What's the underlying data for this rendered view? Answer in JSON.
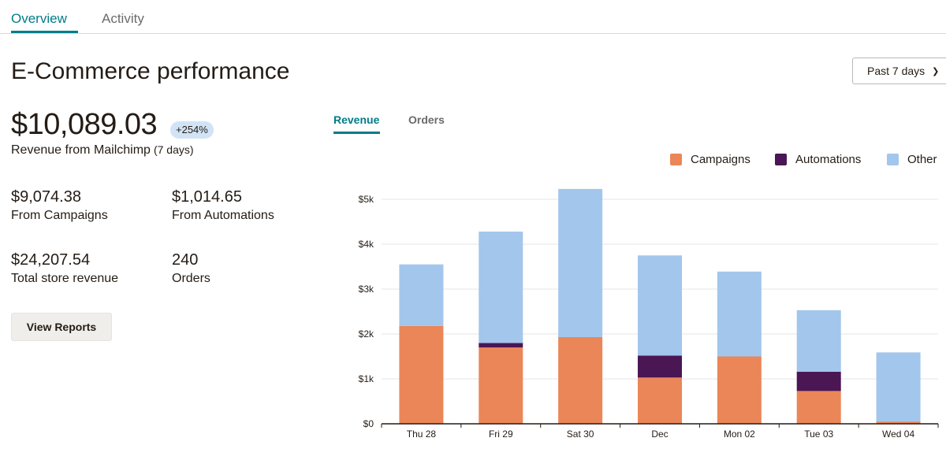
{
  "tabs": [
    {
      "label": "Overview",
      "active": true
    },
    {
      "label": "Activity",
      "active": false
    }
  ],
  "page_title": "E-Commerce performance",
  "date_range": {
    "selected": "Past 7 days"
  },
  "summary": {
    "revenue": "$10,089.03",
    "change_badge": "+254%",
    "revenue_label": "Revenue from Mailchimp",
    "revenue_period": "(7 days)"
  },
  "stats": [
    {
      "value": "$9,074.38",
      "label": "From Campaigns"
    },
    {
      "value": "$1,014.65",
      "label": "From Automations"
    },
    {
      "value": "$24,207.54",
      "label": "Total store revenue"
    },
    {
      "value": "240",
      "label": "Orders"
    }
  ],
  "view_reports_label": "View Reports",
  "chart_tabs": [
    {
      "label": "Revenue",
      "active": true
    },
    {
      "label": "Orders",
      "active": false
    }
  ],
  "colors": {
    "accent": "#007c89",
    "campaigns": "#eb8658",
    "automations": "#4a1653",
    "other": "#a3c6ec",
    "badge": "#d2e3f5"
  },
  "chart_data": {
    "type": "bar",
    "stacked": true,
    "categories": [
      "Thu 28",
      "Fri 29",
      "Sat 30",
      "Dec",
      "Mon 02",
      "Tue 03",
      "Wed 04"
    ],
    "series": [
      {
        "name": "Campaigns",
        "values": [
          2180,
          1700,
          1930,
          1030,
          1500,
          730,
          50
        ]
      },
      {
        "name": "Automations",
        "values": [
          0,
          100,
          0,
          490,
          0,
          430,
          0
        ]
      },
      {
        "name": "Other",
        "values": [
          1370,
          2480,
          3300,
          2230,
          1890,
          1370,
          1540
        ]
      }
    ],
    "y_ticks": [
      "$0",
      "$1k",
      "$2k",
      "$3k",
      "$4k",
      "$5k"
    ],
    "ylim": [
      0,
      5000
    ],
    "grid": true,
    "legend_position": "top-right"
  }
}
